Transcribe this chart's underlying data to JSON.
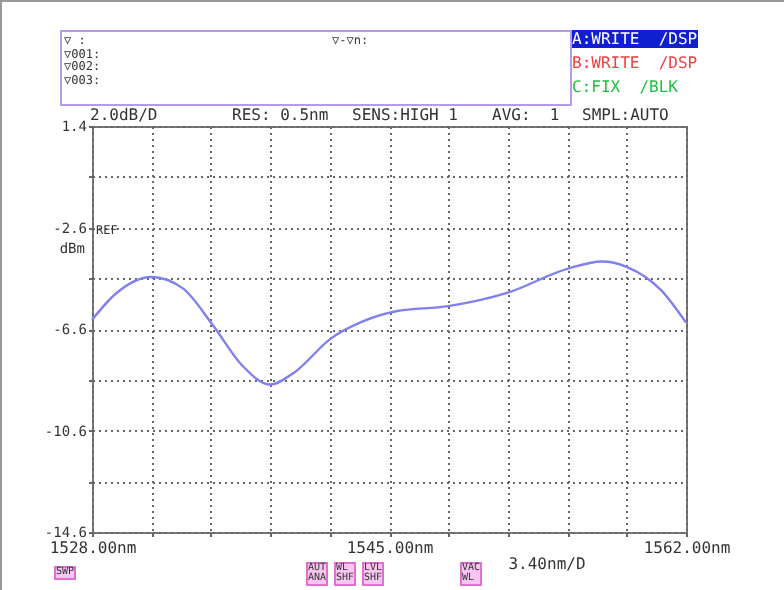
{
  "chart_data": {
    "type": "line",
    "ylabel": "dBm",
    "xlabel": "3.40nm/D",
    "x": [
      1528,
      1529.34,
      1531.4,
      1533.2,
      1534.9,
      1536.6,
      1538.2,
      1539.6,
      1541.7,
      1543.5,
      1545.4,
      1548.4,
      1551.8,
      1555.2,
      1557.2,
      1558.6,
      1560.6,
      1562
    ],
    "series": [
      {
        "color": "#8080ee",
        "values": [
          -6.24,
          -5.22,
          -4.55,
          -5.0,
          -6.43,
          -8.04,
          -8.79,
          -8.3,
          -6.96,
          -6.3,
          -5.9,
          -5.7,
          -5.17,
          -4.23,
          -3.94,
          -4.15,
          -5.09,
          -6.35
        ]
      }
    ],
    "xlim": [
      1528,
      1562
    ],
    "xticks": [
      {
        "value": 1528,
        "label": "1528.00nm"
      },
      {
        "value": 1531.4,
        "label": null
      },
      {
        "value": 1534.8,
        "label": null
      },
      {
        "value": 1538.2,
        "label": null
      },
      {
        "value": 1541.6,
        "label": null
      },
      {
        "value": 1545,
        "label": "1545.00nm"
      },
      {
        "value": 1548.4,
        "label": null
      },
      {
        "value": 1551.8,
        "label": null
      },
      {
        "value": 1555.2,
        "label": null
      },
      {
        "value": 1558.6,
        "label": null
      },
      {
        "value": 1562,
        "label": "1562.00nm"
      }
    ],
    "ylim": [
      -14.6,
      1.4
    ],
    "yticks": [
      1.4,
      {
        "value": -0.6,
        "label": null
      },
      -2.6,
      {
        "value": -4.6,
        "label": null
      },
      -6.6,
      {
        "value": -8.6,
        "label": null
      },
      -10.6,
      {
        "value": -12.6,
        "label": null
      },
      -14.6
    ],
    "grid": true,
    "marker": "none",
    "line_style": "solid",
    "annotations": [
      "▽ :",
      "▽001:",
      "▽002:",
      "▽003:",
      "▽-▽n:",
      "A:WRITE  /DSP",
      "B:WRITE  /DSP",
      "C:FIX  /BLK",
      "2.0dB/D",
      "RES: 0.5nm",
      "SENS:HIGH 1",
      "AVG:  1",
      "SMPL:AUTO",
      "REF",
      "SWP",
      "AUT ANA",
      "WL SHF",
      "LVL SHF",
      "VAC WL"
    ]
  }
}
